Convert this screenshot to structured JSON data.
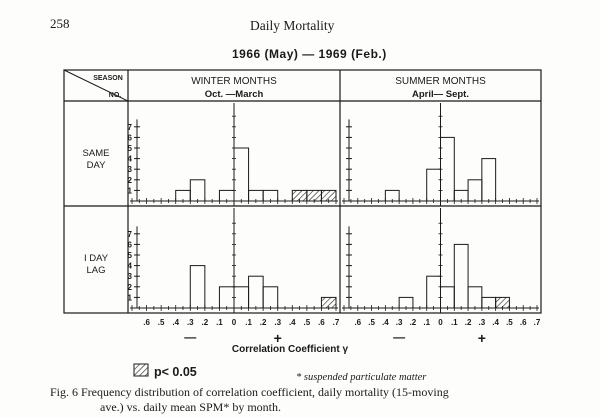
{
  "page": {
    "page_number": "258",
    "running_head": "Daily Mortality"
  },
  "chart_data": {
    "type": "bar",
    "subtitle": "1966 (May) — 1969 (Feb.)",
    "header": {
      "corner_top": "SEASON",
      "corner_bottom": "NO."
    },
    "columns": [
      {
        "key": "winter",
        "title": "WINTER MONTHS",
        "subtitle": "Oct. —March"
      },
      {
        "key": "summer",
        "title": "SUMMER MONTHS",
        "subtitle": "April— Sept."
      }
    ],
    "rows": [
      {
        "key": "same_day",
        "label_lines": [
          "SAME",
          "DAY"
        ]
      },
      {
        "key": "lag",
        "label_lines": [
          "I DAY",
          "LAG"
        ]
      }
    ],
    "x_tick_labels": [
      ".6",
      ".5",
      ".4",
      ".3",
      ".2",
      ".1",
      "0",
      ".1",
      ".2",
      ".3",
      ".4",
      ".5",
      ".6",
      ".7"
    ],
    "x_tick_values": [
      -0.6,
      -0.5,
      -0.4,
      -0.3,
      -0.2,
      -0.1,
      0,
      0.1,
      0.2,
      0.3,
      0.4,
      0.5,
      0.6,
      0.7
    ],
    "x_sign_negative": "—",
    "x_sign_positive": "+",
    "xlabel": "Correlation Coefficient  γ",
    "y_tick_labels": [
      "1",
      "2",
      "3",
      "4",
      "5",
      "6",
      "7"
    ],
    "ylim": [
      0,
      8
    ],
    "panels": [
      {
        "row": "same_day",
        "column": "winter",
        "xlim": [
          -0.7,
          0.7
        ],
        "bars": [
          {
            "x0": -0.4,
            "x1": -0.3,
            "value": 1,
            "significant": false
          },
          {
            "x0": -0.3,
            "x1": -0.2,
            "value": 2,
            "significant": false
          },
          {
            "x0": -0.1,
            "x1": 0.0,
            "value": 1,
            "significant": false
          },
          {
            "x0": 0.0,
            "x1": 0.1,
            "value": 5,
            "significant": false
          },
          {
            "x0": 0.1,
            "x1": 0.2,
            "value": 1,
            "significant": false
          },
          {
            "x0": 0.2,
            "x1": 0.3,
            "value": 1,
            "significant": false
          },
          {
            "x0": 0.4,
            "x1": 0.5,
            "value": 1,
            "significant": true
          },
          {
            "x0": 0.5,
            "x1": 0.6,
            "value": 1,
            "significant": true
          },
          {
            "x0": 0.6,
            "x1": 0.7,
            "value": 1,
            "significant": true
          }
        ]
      },
      {
        "row": "same_day",
        "column": "summer",
        "xlim": [
          -0.7,
          0.7
        ],
        "bars": [
          {
            "x0": -0.4,
            "x1": -0.3,
            "value": 1,
            "significant": false
          },
          {
            "x0": -0.1,
            "x1": 0.0,
            "value": 3,
            "significant": false
          },
          {
            "x0": 0.0,
            "x1": 0.1,
            "value": 6,
            "significant": false
          },
          {
            "x0": 0.1,
            "x1": 0.2,
            "value": 1,
            "significant": false
          },
          {
            "x0": 0.2,
            "x1": 0.3,
            "value": 2,
            "significant": false
          },
          {
            "x0": 0.3,
            "x1": 0.4,
            "value": 4,
            "significant": false
          }
        ]
      },
      {
        "row": "lag",
        "column": "winter",
        "xlim": [
          -0.7,
          0.7
        ],
        "bars": [
          {
            "x0": -0.3,
            "x1": -0.2,
            "value": 4,
            "significant": false
          },
          {
            "x0": -0.1,
            "x1": 0.0,
            "value": 2,
            "significant": false
          },
          {
            "x0": 0.0,
            "x1": 0.1,
            "value": 2,
            "significant": false
          },
          {
            "x0": 0.1,
            "x1": 0.2,
            "value": 3,
            "significant": false
          },
          {
            "x0": 0.2,
            "x1": 0.3,
            "value": 2,
            "significant": false
          },
          {
            "x0": 0.6,
            "x1": 0.7,
            "value": 1,
            "significant": true
          }
        ]
      },
      {
        "row": "lag",
        "column": "summer",
        "xlim": [
          -0.7,
          0.7
        ],
        "bars": [
          {
            "x0": -0.3,
            "x1": -0.2,
            "value": 1,
            "significant": false
          },
          {
            "x0": -0.1,
            "x1": 0.0,
            "value": 3,
            "significant": false
          },
          {
            "x0": 0.0,
            "x1": 0.1,
            "value": 2,
            "significant": false
          },
          {
            "x0": 0.1,
            "x1": 0.2,
            "value": 6,
            "significant": false
          },
          {
            "x0": 0.2,
            "x1": 0.3,
            "value": 2,
            "significant": false
          },
          {
            "x0": 0.3,
            "x1": 0.4,
            "value": 1,
            "significant": false
          },
          {
            "x0": 0.4,
            "x1": 0.5,
            "value": 1,
            "significant": true
          }
        ]
      }
    ],
    "legend": [
      {
        "label": "p< 0.05",
        "style": "hatched"
      }
    ],
    "footnote": "* suspended particulate matter",
    "caption_lines": [
      "Fig. 6  Frequency distribution of correlation coefficient, daily mortality (15-moving",
      "ave.) vs. daily mean SPM* by month."
    ]
  }
}
